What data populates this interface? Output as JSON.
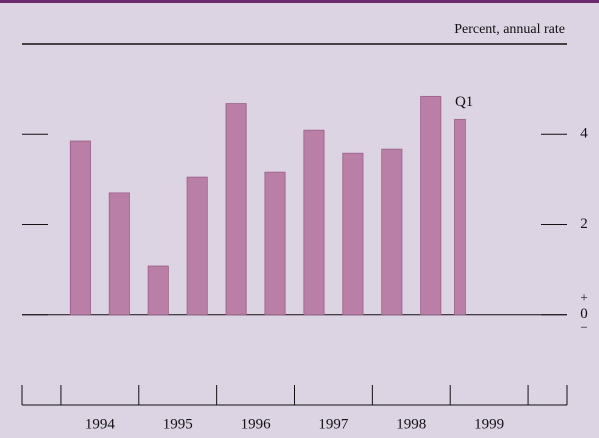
{
  "chart_data": {
    "type": "bar",
    "unit_label": "Percent, annual rate",
    "x": [
      1994.25,
      1994.75,
      1995.25,
      1995.75,
      1996.25,
      1996.75,
      1997.25,
      1997.75,
      1998.25,
      1998.75,
      1999.125
    ],
    "values": [
      3.85,
      2.7,
      1.08,
      3.05,
      4.68,
      3.16,
      4.09,
      3.58,
      3.67,
      4.84,
      4.33
    ],
    "color": "#b97fa6",
    "annotation": "Q1",
    "xlim": [
      1993.5,
      2000.5
    ],
    "xticks": [
      {
        "value": 1994.5,
        "label": "1994"
      },
      {
        "value": 1995.5,
        "label": "1995"
      },
      {
        "value": 1996.5,
        "label": "1996"
      },
      {
        "value": 1997.5,
        "label": "1997"
      },
      {
        "value": 1998.5,
        "label": "1998"
      },
      {
        "value": 1999.5,
        "label": "1999"
      }
    ],
    "ylim": [
      -2,
      6
    ],
    "yticks": [
      0,
      2,
      4
    ],
    "zero_signs": [
      "+",
      "−"
    ]
  }
}
